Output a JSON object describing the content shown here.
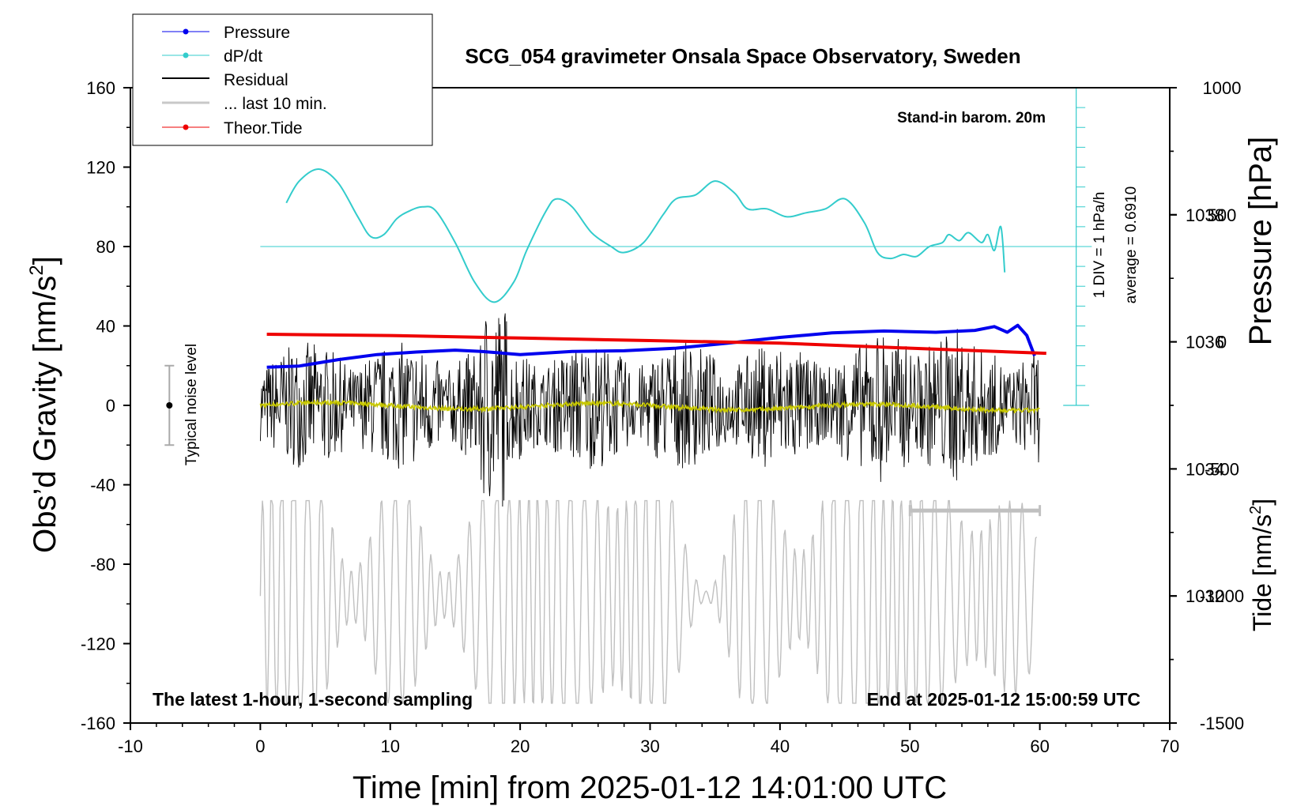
{
  "chart_data": {
    "type": "line",
    "title": "SCG_054 gravimeter Onsala Space Observatory, Sweden",
    "xlabel": "Time [min] from 2025-01-12 14:01:00 UTC",
    "ylabel_left": "Obs’d Gravity [nm/s²]",
    "ylabel_left_base": "Obs’d Gravity [nm/s",
    "ylabel_right_top": "Pressure [hPa]",
    "ylabel_right_bottom_base": "Tide [nm/s",
    "superscript": "2",
    "close_bracket": "]",
    "xlim": [
      -10,
      70
    ],
    "ylim": [
      -160,
      160
    ],
    "xticks": [
      "-10",
      "0",
      "10",
      "20",
      "30",
      "40",
      "50",
      "60",
      "70"
    ],
    "yticks_left": [
      "160",
      "120",
      "80",
      "40",
      "0",
      "-40",
      "-80",
      "-120",
      "-160"
    ],
    "pressure_axis": {
      "range": [
        1030,
        1040
      ],
      "ticks": [
        "1038",
        "1036",
        "1034",
        "1032"
      ]
    },
    "tide_axis": {
      "range": [
        -1500,
        1000
      ],
      "ticks": [
        "1000",
        "500",
        "0",
        "-500",
        "-1000",
        "-1500"
      ]
    },
    "annotations": {
      "top_right": "Stand-in barom. 20m",
      "bottom_left": "The latest 1-hour, 1-second sampling",
      "bottom_right": "End at 2025-01-12 15:00:59 UTC",
      "noise_label": "Typical noise level",
      "div_label": "1 DIV = 1 hPa/h",
      "average_label": "average = 0.6910"
    },
    "legend": [
      "Pressure",
      "dP/dt",
      "Residual",
      "... last 10 min.",
      "Theor.Tide"
    ],
    "series": [
      {
        "name": "Pressure",
        "axis": "pressure_hPa",
        "color": "#0000ee",
        "x": [
          0.5,
          3,
          6,
          9,
          12,
          15,
          17,
          20,
          24,
          28,
          32,
          36,
          40,
          44,
          48,
          52,
          55,
          56.5,
          57.5,
          58.3,
          59,
          59.6
        ],
        "y": [
          1035.6,
          1035.62,
          1035.72,
          1035.8,
          1035.84,
          1035.87,
          1035.85,
          1035.8,
          1035.85,
          1035.86,
          1035.9,
          1035.98,
          1036.07,
          1036.14,
          1036.17,
          1036.15,
          1036.18,
          1036.24,
          1036.15,
          1036.26,
          1036.1,
          1035.78
        ]
      },
      {
        "name": "dP/dt",
        "axis": "gravity",
        "color": "#33cccc",
        "x": [
          2,
          3,
          4.5,
          6,
          7.5,
          8.5,
          9.5,
          10.5,
          11.5,
          12.5,
          13.5,
          15,
          16.5,
          18,
          19.5,
          20.5,
          22,
          22.8,
          24,
          25.5,
          27,
          28,
          29.5,
          31,
          32,
          33.5,
          35,
          36.5,
          37.5,
          39,
          40.5,
          42,
          43.5,
          45,
          46.5,
          47.5,
          48.5,
          49.5,
          50.5,
          51.5,
          52.5,
          53,
          53.8,
          54.5,
          55.5,
          56,
          56.5,
          57,
          57.3
        ],
        "y": [
          102,
          113,
          119,
          112,
          95,
          85,
          86,
          94,
          98,
          100,
          98,
          82,
          62,
          52,
          62,
          78,
          98,
          104,
          100,
          87,
          80,
          77,
          82,
          96,
          104,
          106,
          113,
          107,
          99,
          99,
          95,
          97,
          99,
          104,
          92,
          77,
          74,
          76,
          75,
          80,
          82,
          86,
          83,
          87,
          82,
          86,
          78,
          90,
          67
        ]
      },
      {
        "name": "Residual",
        "axis": "gravity",
        "color": "#000000",
        "x_range": [
          0,
          60
        ],
        "y_range": [
          -55,
          52
        ]
      },
      {
        "name": "... last 10 min.",
        "axis": "gravity",
        "color": "#c8c8c8",
        "x": [
          50,
          60
        ],
        "y": [
          -53,
          -53
        ]
      },
      {
        "name": "Theor.Tide",
        "axis": "tide_nm_s2",
        "color": "#ee0000",
        "x": [
          0.5,
          10,
          20,
          30,
          40,
          50,
          60.5
        ],
        "y": [
          30,
          25,
          15,
          5,
          -5,
          -25,
          -45
        ]
      }
    ],
    "noise_bar": {
      "x": -7,
      "y_center": 0,
      "half_range": 20
    }
  }
}
